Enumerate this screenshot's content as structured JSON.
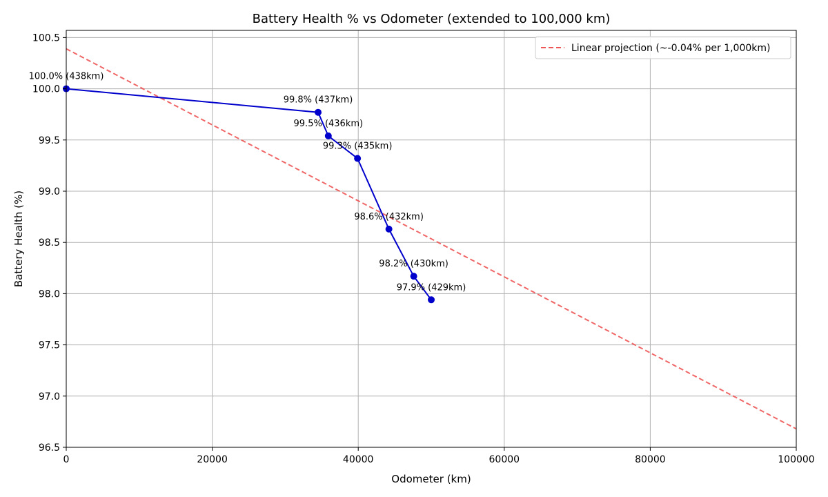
{
  "chart_data": {
    "type": "line",
    "title": "Battery Health % vs Odometer (extended to 100,000 km)",
    "xlabel": "Odometer (km)",
    "ylabel": "Battery Health (%)",
    "xlim": [
      0,
      100000
    ],
    "ylim": [
      96.5,
      100.57
    ],
    "xticks": [
      0,
      20000,
      40000,
      60000,
      80000,
      100000
    ],
    "xtick_labels": [
      "0",
      "20000",
      "40000",
      "60000",
      "80000",
      "100000"
    ],
    "yticks": [
      96.5,
      97.0,
      97.5,
      98.0,
      98.5,
      99.0,
      99.5,
      100.0,
      100.5
    ],
    "ytick_labels": [
      "96.5",
      "97.0",
      "97.5",
      "98.0",
      "98.5",
      "99.0",
      "99.5",
      "100.0",
      "100.5"
    ],
    "grid": true,
    "legend_position": "top-right",
    "series": [
      {
        "kind": "line-markers",
        "color": "#0000cc",
        "points": [
          {
            "x": 0,
            "y": 100.0,
            "label": "100.0% (438km)"
          },
          {
            "x": 34500,
            "y": 99.77,
            "label": "99.8% (437km)"
          },
          {
            "x": 35900,
            "y": 99.54,
            "label": "99.5% (436km)"
          },
          {
            "x": 39900,
            "y": 99.32,
            "label": "99.3% (435km)"
          },
          {
            "x": 44200,
            "y": 98.63,
            "label": "98.6% (432km)"
          },
          {
            "x": 47600,
            "y": 98.17,
            "label": "98.2% (430km)"
          },
          {
            "x": 50000,
            "y": 97.94,
            "label": "97.9% (429km)"
          }
        ]
      },
      {
        "name": "Linear projection (~-0.04% per 1,000km)",
        "kind": "dashed-line",
        "color": "#ee5555",
        "points": [
          {
            "x": 0,
            "y": 100.39
          },
          {
            "x": 100000,
            "y": 96.68
          }
        ]
      }
    ]
  }
}
